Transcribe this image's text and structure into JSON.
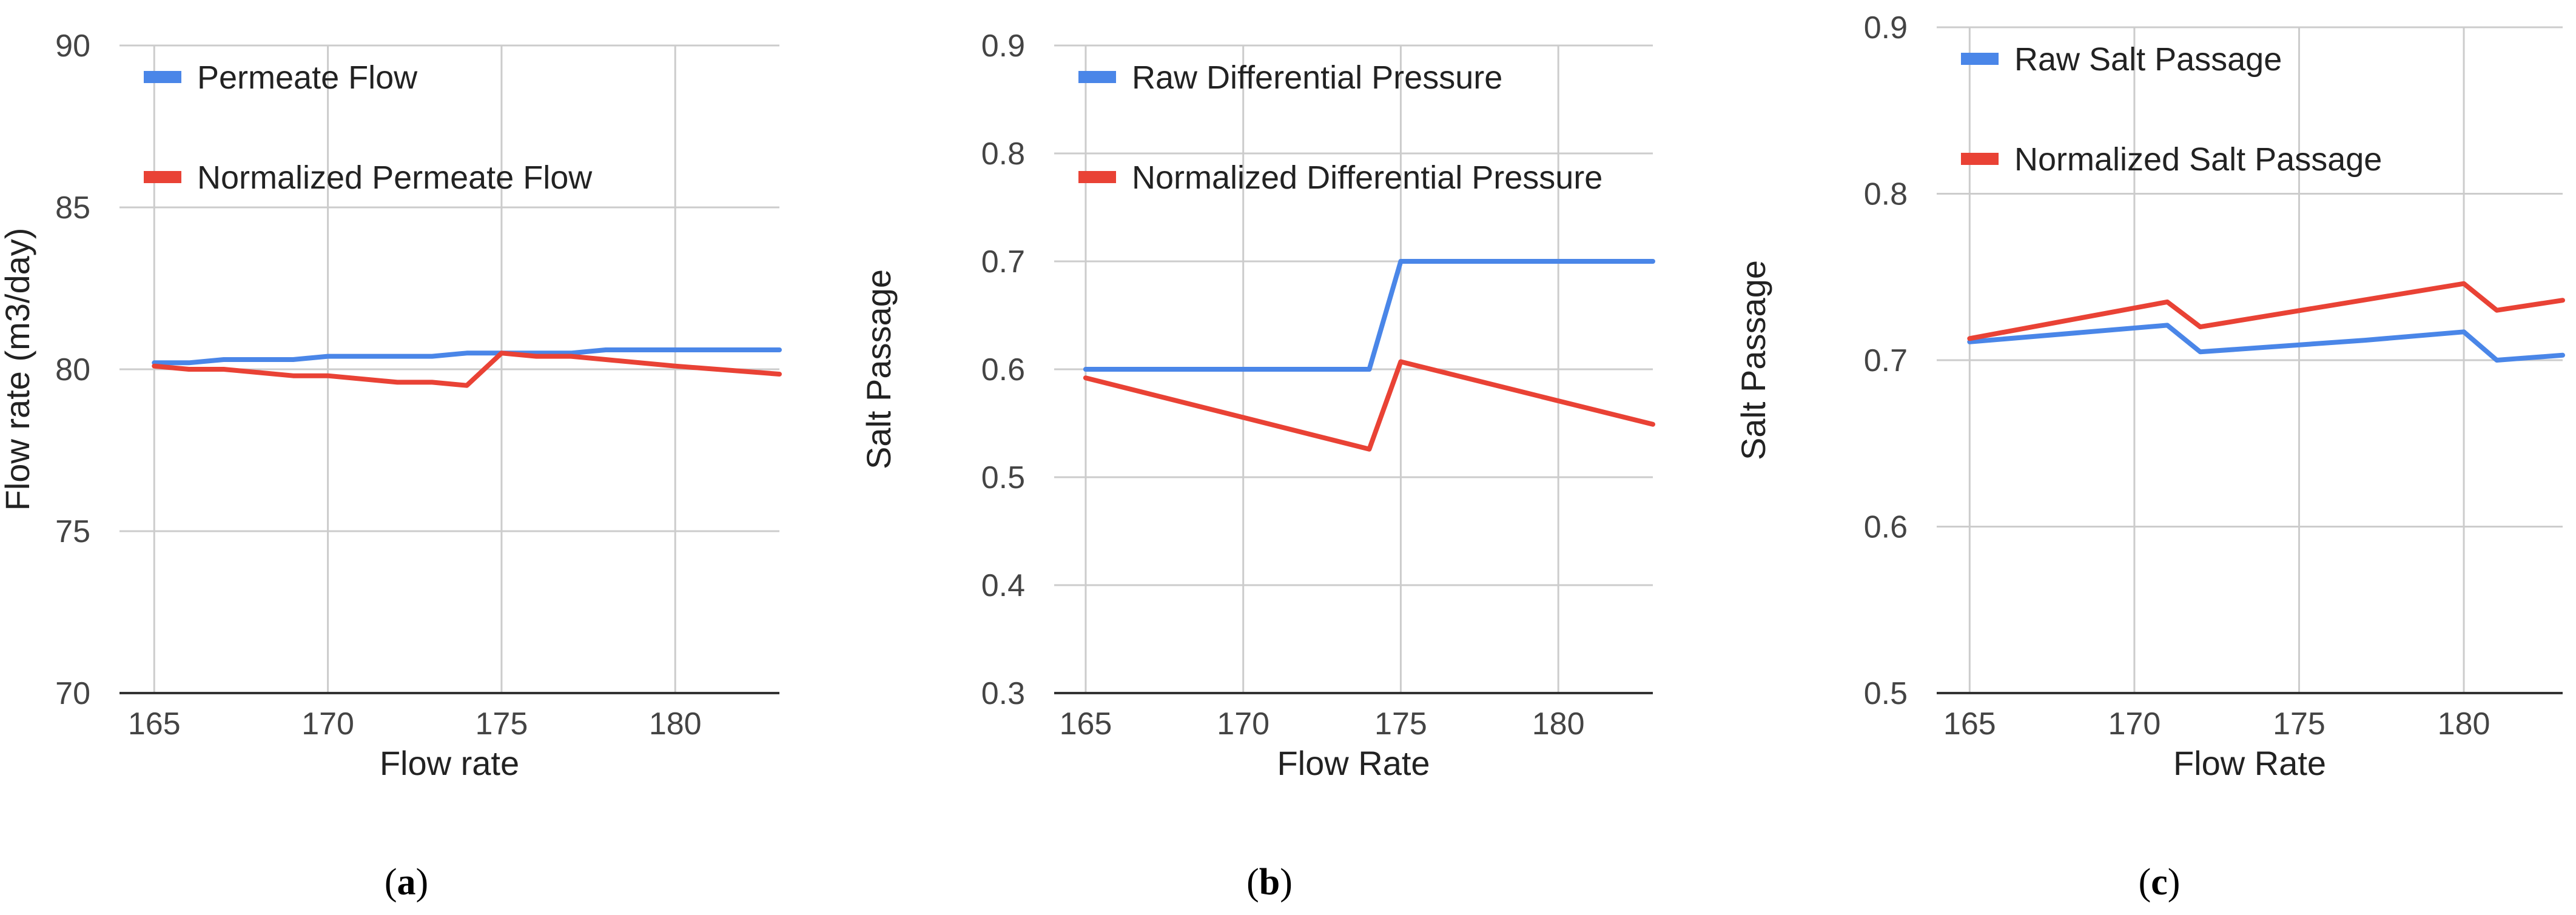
{
  "colors": {
    "blue": "#4a86e8",
    "red": "#e94235",
    "grid": "#cccccc",
    "axis": "#333333"
  },
  "chart_data": [
    {
      "type": "line",
      "panel_label": "a",
      "xlabel": "Flow rate",
      "ylabel": "Flow rate (m3/day)",
      "xlim": [
        164,
        183
      ],
      "ylim": [
        70,
        90
      ],
      "xticks": [
        165,
        170,
        175,
        180
      ],
      "yticks": [
        70,
        75,
        80,
        85,
        90
      ],
      "grid": true,
      "legend_position": "top-left",
      "series": [
        {
          "name": "Permeate Flow",
          "color": "blue",
          "points": [
            [
              165,
              80.2
            ],
            [
              166,
              80.2
            ],
            [
              167,
              80.3
            ],
            [
              169,
              80.3
            ],
            [
              170,
              80.4
            ],
            [
              171,
              80.4
            ],
            [
              173,
              80.4
            ],
            [
              174,
              80.5
            ],
            [
              175,
              80.5
            ],
            [
              177,
              80.5
            ],
            [
              178,
              80.6
            ],
            [
              183,
              80.6
            ]
          ]
        },
        {
          "name": "Normalized Permeate Flow",
          "color": "red",
          "points": [
            [
              165,
              80.1
            ],
            [
              166,
              80.0
            ],
            [
              167,
              80.0
            ],
            [
              169,
              79.8
            ],
            [
              170,
              79.8
            ],
            [
              172,
              79.6
            ],
            [
              173,
              79.6
            ],
            [
              174,
              79.5
            ],
            [
              175,
              80.5
            ],
            [
              176,
              80.4
            ],
            [
              177,
              80.4
            ],
            [
              178,
              80.3
            ],
            [
              180,
              80.1
            ],
            [
              183,
              79.85
            ]
          ]
        }
      ]
    },
    {
      "type": "line",
      "panel_label": "b",
      "xlabel": "Flow Rate",
      "ylabel": "Salt Passage",
      "xlim": [
        164,
        183
      ],
      "ylim": [
        0.3,
        0.9
      ],
      "xticks": [
        165,
        170,
        175,
        180
      ],
      "yticks": [
        0.3,
        0.4,
        0.5,
        0.6,
        0.7,
        0.8,
        0.9
      ],
      "grid": true,
      "legend_position": "top-left",
      "series": [
        {
          "name": "Raw Differential Pressure",
          "color": "blue",
          "points": [
            [
              165,
              0.6
            ],
            [
              174,
              0.6
            ],
            [
              175,
              0.7
            ],
            [
              183,
              0.7
            ]
          ]
        },
        {
          "name": "Normalized Differential Pressure",
          "color": "red",
          "points": [
            [
              165,
              0.592
            ],
            [
              174,
              0.526
            ],
            [
              175,
              0.607
            ],
            [
              183,
              0.549
            ]
          ]
        }
      ]
    },
    {
      "type": "line",
      "panel_label": "c",
      "xlabel": "Flow Rate",
      "ylabel": "Salt Passage",
      "xlim": [
        164,
        183
      ],
      "ylim": [
        0.5,
        0.9
      ],
      "xticks": [
        165,
        170,
        175,
        180
      ],
      "yticks": [
        0.5,
        0.6,
        0.7,
        0.8,
        0.9
      ],
      "grid": true,
      "legend_position": "top-left",
      "series": [
        {
          "name": "Raw Salt Passage",
          "color": "blue",
          "points": [
            [
              165,
              0.711
            ],
            [
              171,
              0.721
            ],
            [
              172,
              0.705
            ],
            [
              177,
              0.712
            ],
            [
              180,
              0.717
            ],
            [
              181,
              0.7
            ],
            [
              183,
              0.703
            ]
          ]
        },
        {
          "name": "Normalized Salt Passage",
          "color": "red",
          "points": [
            [
              165,
              0.713
            ],
            [
              171,
              0.735
            ],
            [
              172,
              0.72
            ],
            [
              180,
              0.746
            ],
            [
              181,
              0.73
            ],
            [
              183,
              0.736
            ]
          ]
        }
      ]
    }
  ]
}
